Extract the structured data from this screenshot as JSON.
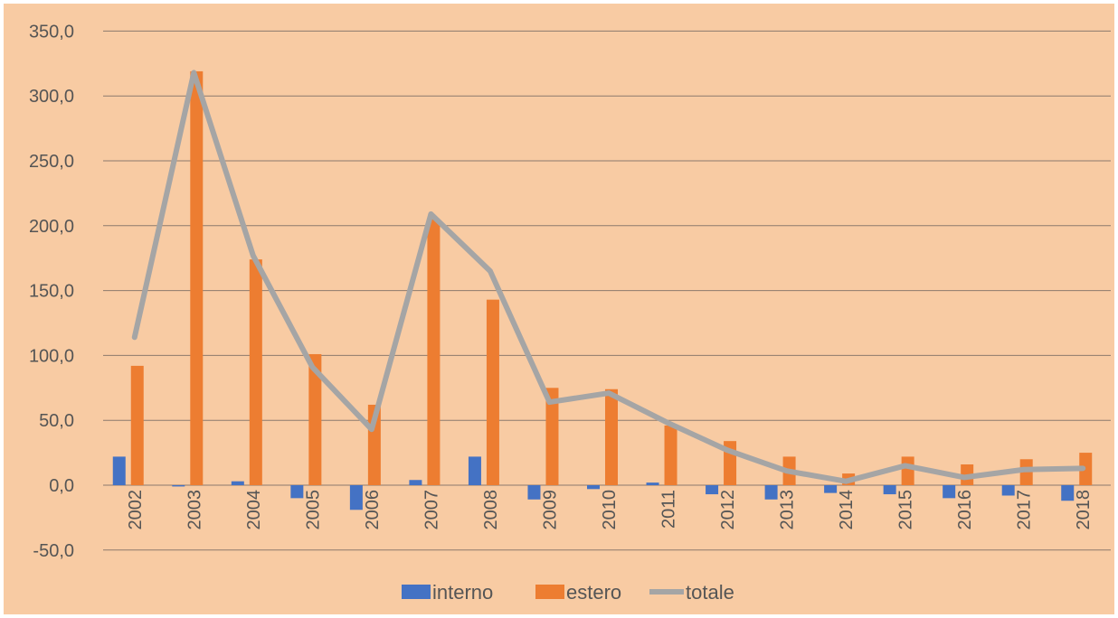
{
  "chart_data": {
    "type": "bar",
    "categories": [
      "2002",
      "2003",
      "2004",
      "2005",
      "2006",
      "2007",
      "2008",
      "2009",
      "2010",
      "2011",
      "2012",
      "2013",
      "2014",
      "2015",
      "2016",
      "2017",
      "2018"
    ],
    "series": [
      {
        "name": "interno",
        "type": "bar",
        "color": "#4472c4",
        "values": [
          22,
          -1,
          3,
          -10,
          -19,
          4,
          22,
          -11,
          -3,
          2,
          -7,
          -11,
          -6,
          -7,
          -10,
          -8,
          -12
        ]
      },
      {
        "name": "estero",
        "type": "bar",
        "color": "#ed7d31",
        "values": [
          92,
          319,
          174,
          101,
          62,
          205,
          143,
          75,
          74,
          46,
          34,
          22,
          9,
          22,
          16,
          20,
          25
        ]
      },
      {
        "name": "totale",
        "type": "line",
        "color": "#a5a5a5",
        "values": [
          114,
          318,
          177,
          91,
          43,
          209,
          165,
          64,
          71,
          48,
          27,
          11,
          3,
          15,
          6,
          12,
          13
        ]
      }
    ],
    "y_ticks": [
      "-50,0",
      "0,0",
      "50,0",
      "100,0",
      "150,0",
      "200,0",
      "250,0",
      "300,0",
      "350,0"
    ],
    "ylim": [
      -50,
      350
    ],
    "grid": true,
    "legend_position": "bottom"
  }
}
